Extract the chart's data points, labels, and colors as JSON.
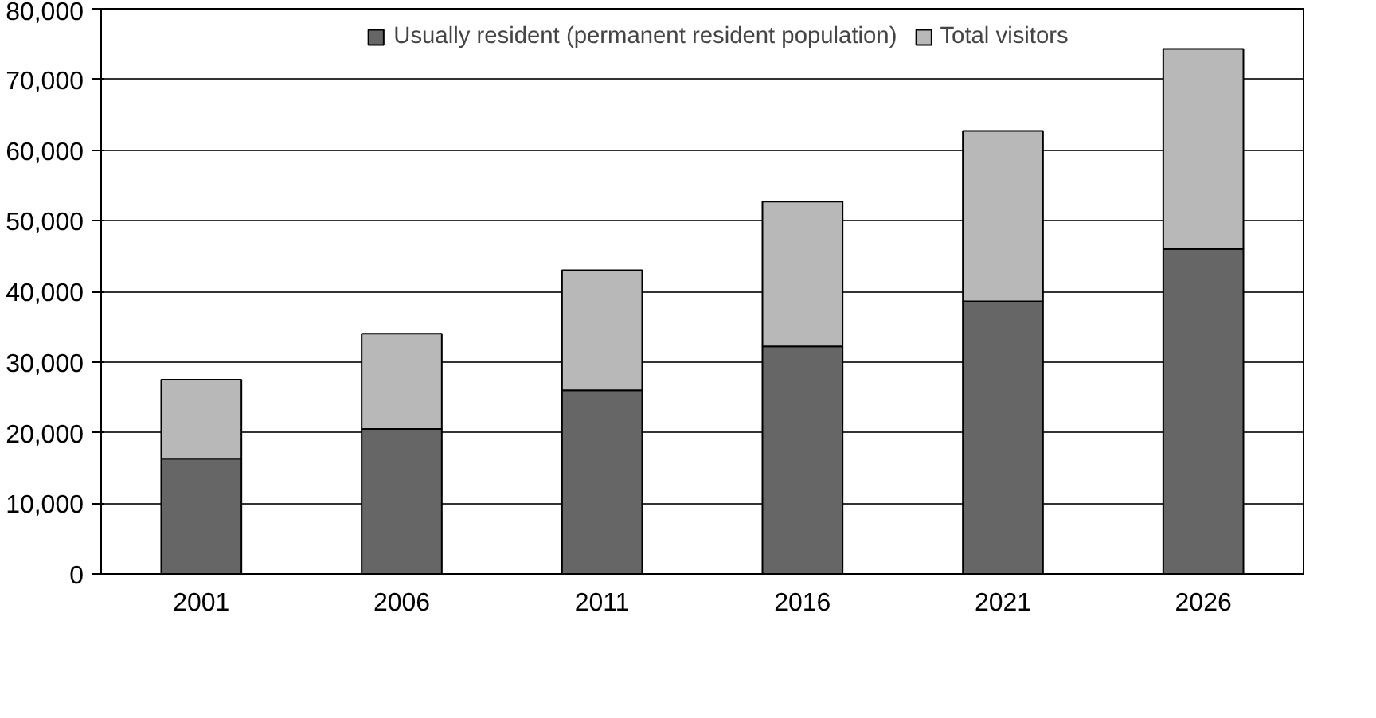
{
  "chart_data": {
    "type": "bar",
    "stacked": true,
    "categories": [
      "2001",
      "2006",
      "2011",
      "2016",
      "2021",
      "2026"
    ],
    "series": [
      {
        "name": "Usually resident (permanent resident population)",
        "color": "#666666",
        "values": [
          16300,
          20500,
          26000,
          32200,
          38600,
          46000
        ]
      },
      {
        "name": "Total visitors",
        "color": "#b8b8b8",
        "values": [
          11200,
          13500,
          17000,
          20500,
          24100,
          28300
        ]
      }
    ],
    "ylim": [
      0,
      80000
    ],
    "yticks": [
      {
        "value": 0,
        "label": "0"
      },
      {
        "value": 10000,
        "label": "10,000"
      },
      {
        "value": 20000,
        "label": "20,000"
      },
      {
        "value": 30000,
        "label": "30,000"
      },
      {
        "value": 40000,
        "label": "40,000"
      },
      {
        "value": 50000,
        "label": "50,000"
      },
      {
        "value": 60000,
        "label": "60,000"
      },
      {
        "value": 70000,
        "label": "70,000"
      },
      {
        "value": 80000,
        "label": "80,000"
      }
    ],
    "grid": "y",
    "legend": "top"
  }
}
